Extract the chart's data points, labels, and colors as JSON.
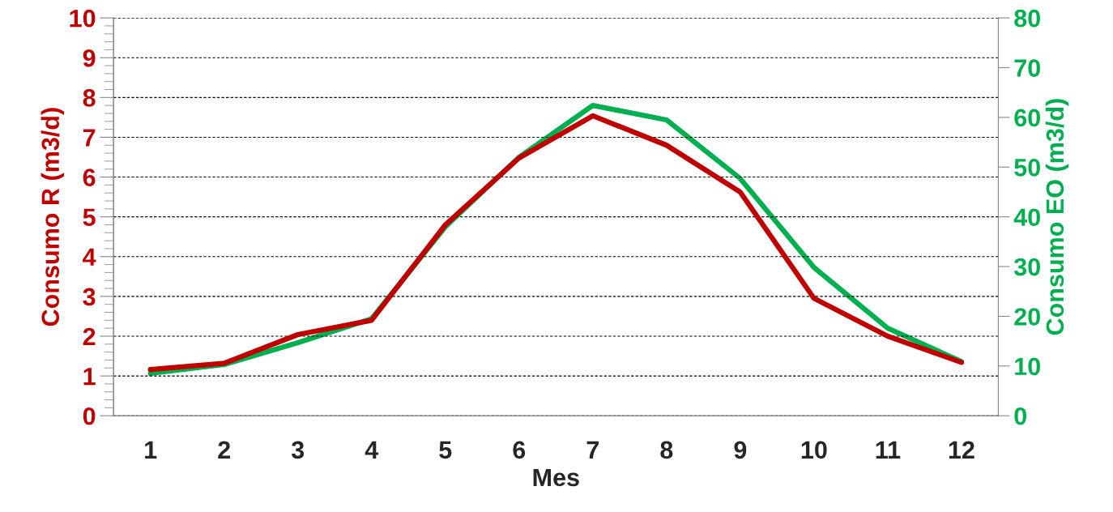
{
  "chart_data": {
    "type": "line",
    "xlabel": "Mes",
    "ylabel": "Consumo R (m3/d)",
    "y2label": "Consumo EO (m3/d)",
    "categories": [
      "1",
      "2",
      "3",
      "4",
      "5",
      "6",
      "7",
      "8",
      "9",
      "10",
      "11",
      "12"
    ],
    "series": [
      {
        "color": "#c00000",
        "values": [
          1.16,
          1.32,
          2.04,
          2.4,
          4.8,
          6.48,
          7.54,
          6.8,
          5.62,
          2.95,
          2.0,
          1.34
        ]
      },
      {
        "color": "#00b050",
        "axis": "y2",
        "values": [
          8.5,
          10.3,
          14.7,
          19.5,
          38,
          52,
          62.4,
          59.5,
          47.7,
          29.8,
          17.6,
          10.9
        ]
      }
    ],
    "ylim": [
      0,
      10
    ],
    "yticks": [
      0,
      1,
      2,
      3,
      4,
      5,
      6,
      7,
      8,
      9,
      10
    ],
    "y2lim": [
      0,
      80
    ],
    "y2ticks": [
      0,
      10,
      20,
      30,
      40,
      50,
      60,
      70,
      80
    ],
    "grid": true,
    "marker": "none",
    "line_style": "solid"
  }
}
